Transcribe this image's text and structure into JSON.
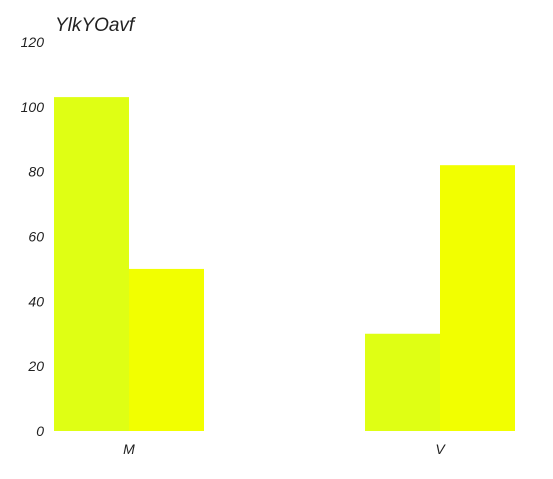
{
  "chart_data": {
    "type": "bar",
    "title": "YlkYOavf",
    "xlabel": "",
    "ylabel": "",
    "categories": [
      "M",
      "V"
    ],
    "series": [
      {
        "values": [
          103,
          30
        ],
        "color": "#dfff14"
      },
      {
        "values": [
          50,
          82
        ],
        "color": "#f2ff00"
      }
    ],
    "ylim": [
      0,
      120
    ],
    "yticks": [
      0,
      20,
      40,
      60,
      80,
      100,
      120
    ],
    "grid": false,
    "legend": "none"
  }
}
